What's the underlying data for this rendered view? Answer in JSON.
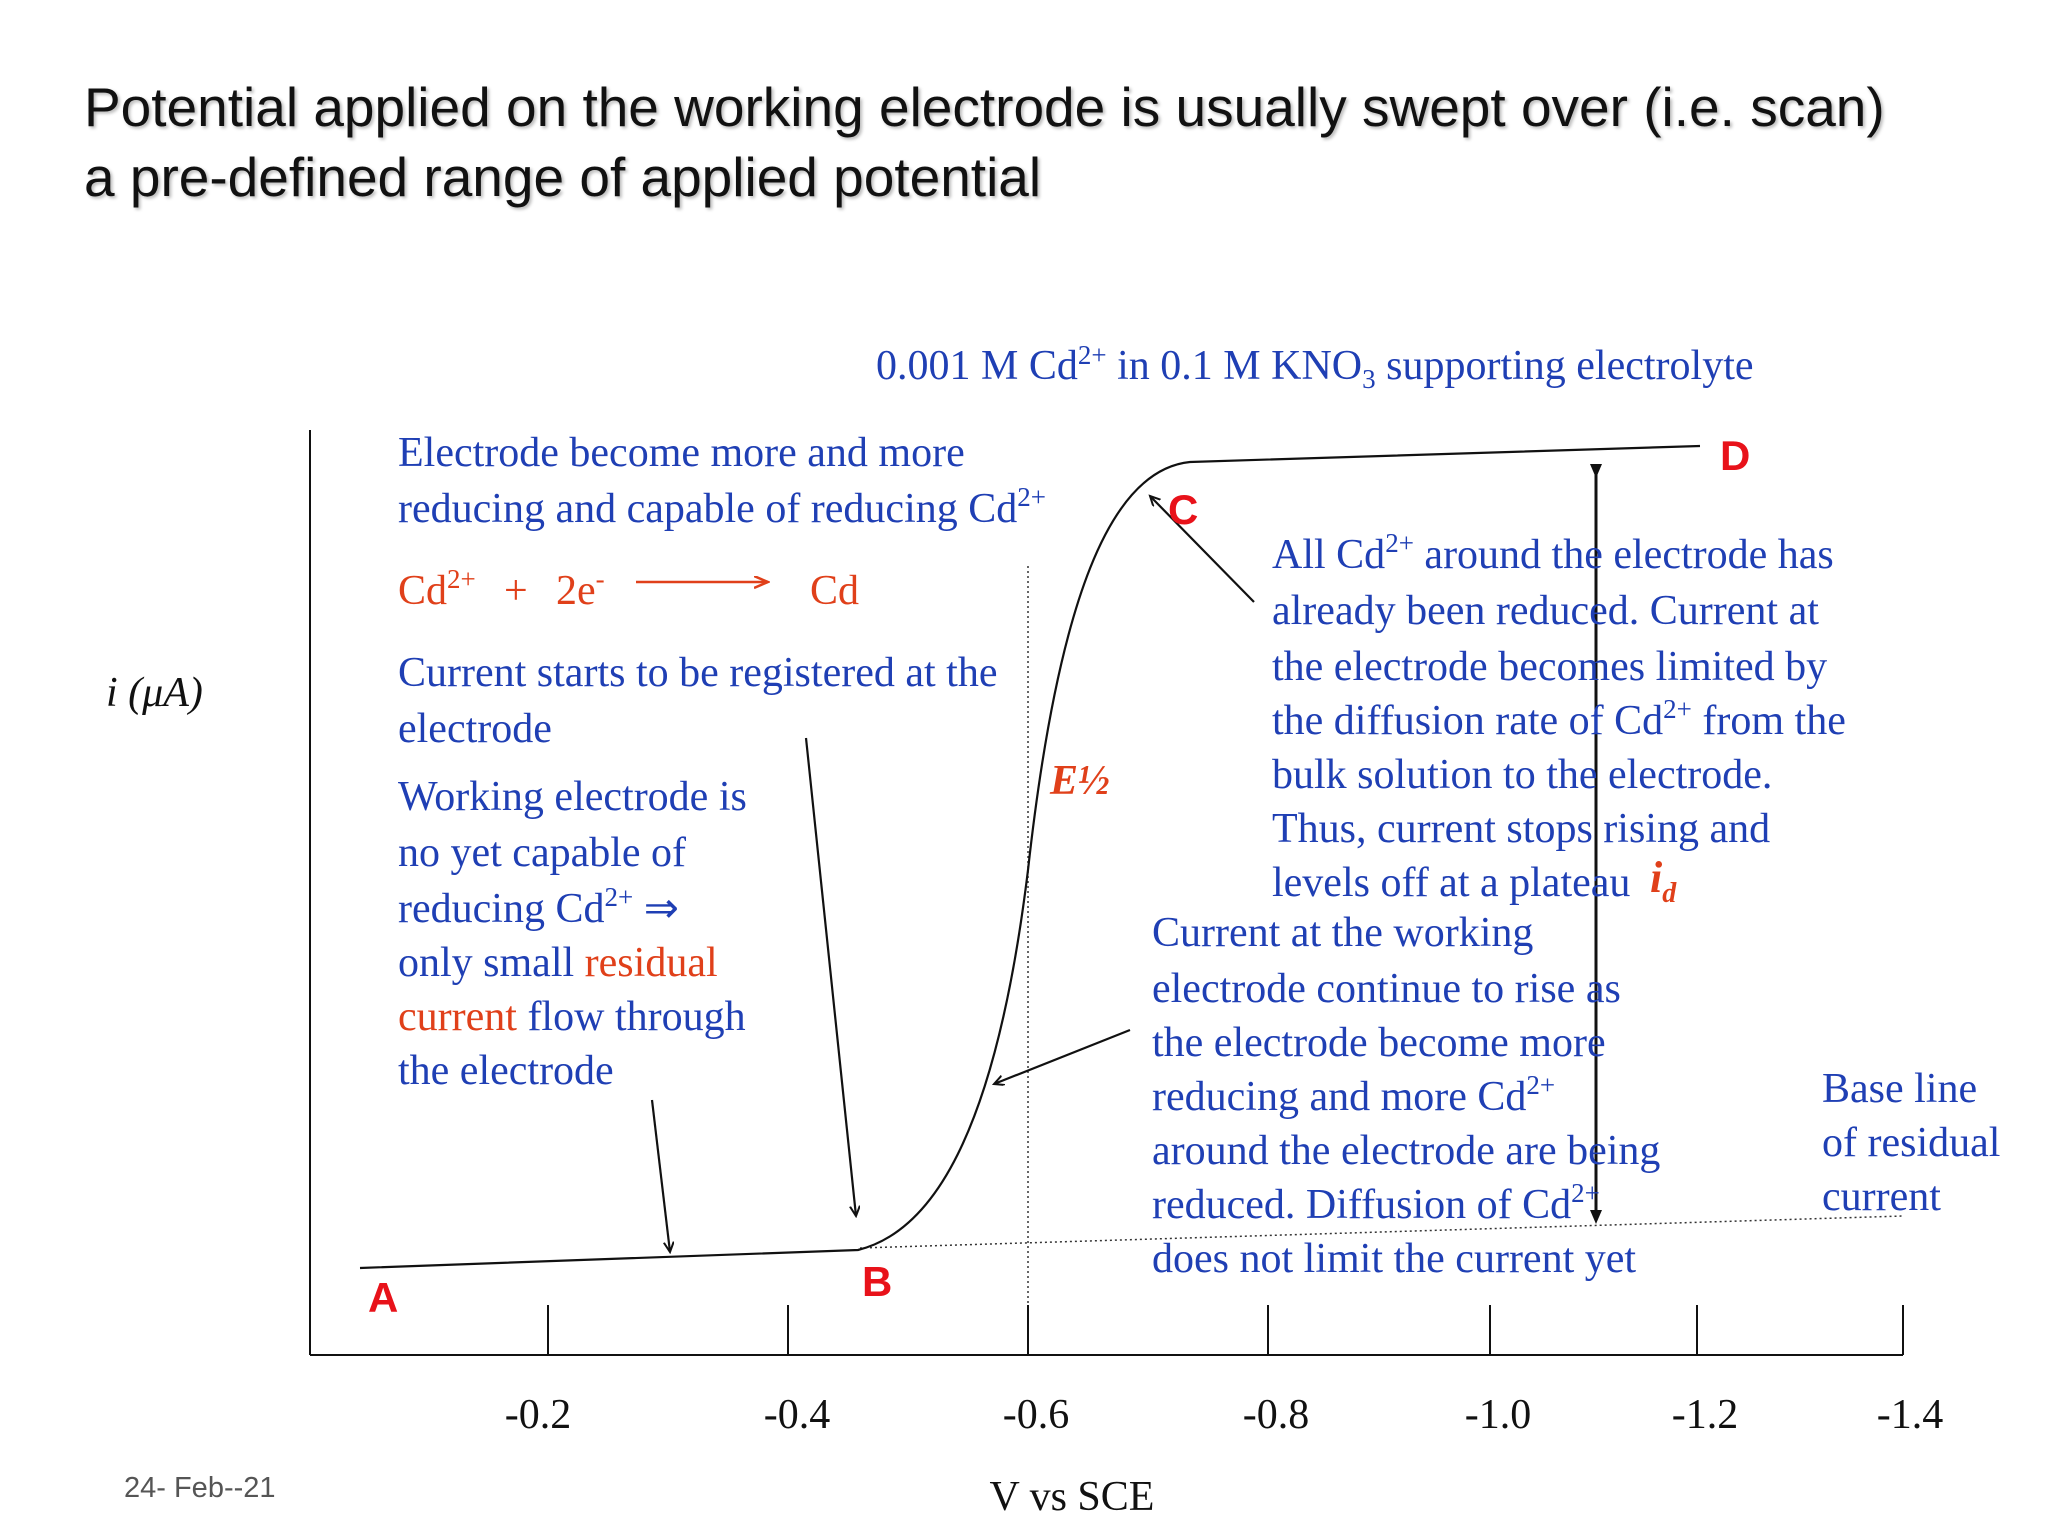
{
  "title": {
    "line1": "Potential applied on the working electrode is usually swept over (i.e. scan)",
    "line2": "a pre-defined range of applied potential"
  },
  "footer": {
    "date": "24- Feb--21"
  },
  "colors": {
    "blue": "#1f3fb4",
    "red": "#e8121a",
    "orange": "#e0401a",
    "black": "#111111"
  },
  "chart_data": {
    "type": "line",
    "title": "0.001 M Cd2+ in 0.1 M KNO3 supporting electrolyte",
    "ylabel": "i (μA)",
    "xlabel": "V vs SCE",
    "x_ticks": [
      "-0.2",
      "-0.4",
      "-0.6",
      "-0.8",
      "-1.0",
      "-1.2",
      "-1.4"
    ],
    "points": {
      "A": "A",
      "B": "B",
      "C": "C",
      "D": "D"
    },
    "e_half_label": "E½",
    "id_label": "id"
  },
  "annotations": {
    "electrode_reducing": {
      "line1": "Electrode become more and more",
      "line2_text": "reducing and capable of reducing Cd",
      "line2_sup": "2+"
    },
    "reaction": {
      "cd": "Cd",
      "sup": "2+",
      "plus": "+",
      "electrons": "2e",
      "electron_sup": "-",
      "product": "Cd"
    },
    "current_starts": {
      "line1": "Current starts to be registered at the",
      "line2": "electrode"
    },
    "working_electrode": {
      "line1": "Working electrode is",
      "line2": "no yet capable of",
      "line3_text": "reducing Cd",
      "line3_sup": "2+",
      "line3_arrow": " ⇒",
      "line4_text": "only small",
      "line4_red": "residual",
      "line5_red": "current",
      "line5_text": "flow through",
      "line6": "the electrode"
    },
    "all_cd": {
      "line1_a": "All Cd",
      "line1_sup": "2+",
      "line1_b": " around the electrode has",
      "line2": "already been reduced. Current at",
      "line3": "the electrode becomes limited by",
      "line4_a": "the diffusion rate of Cd",
      "line4_sup": "2+",
      "line4_b": " from the",
      "line5": "bulk solution to the electrode.",
      "line6": "Thus, current stops rising and",
      "line7": "levels off at a plateau"
    },
    "current_rise": {
      "line1": "Current at the working",
      "line2": "electrode continue to rise as",
      "line3": "the electrode become more",
      "line4_a": "reducing and more Cd",
      "line4_sup": "2+",
      "line5": "around the electrode are being",
      "line6_a": "reduced. Diffusion of Cd",
      "line6_sup": "2+",
      "line7": "does not limit the current yet"
    },
    "baseline": {
      "line1": "Base line",
      "line2": "of residual",
      "line3": "current"
    }
  }
}
